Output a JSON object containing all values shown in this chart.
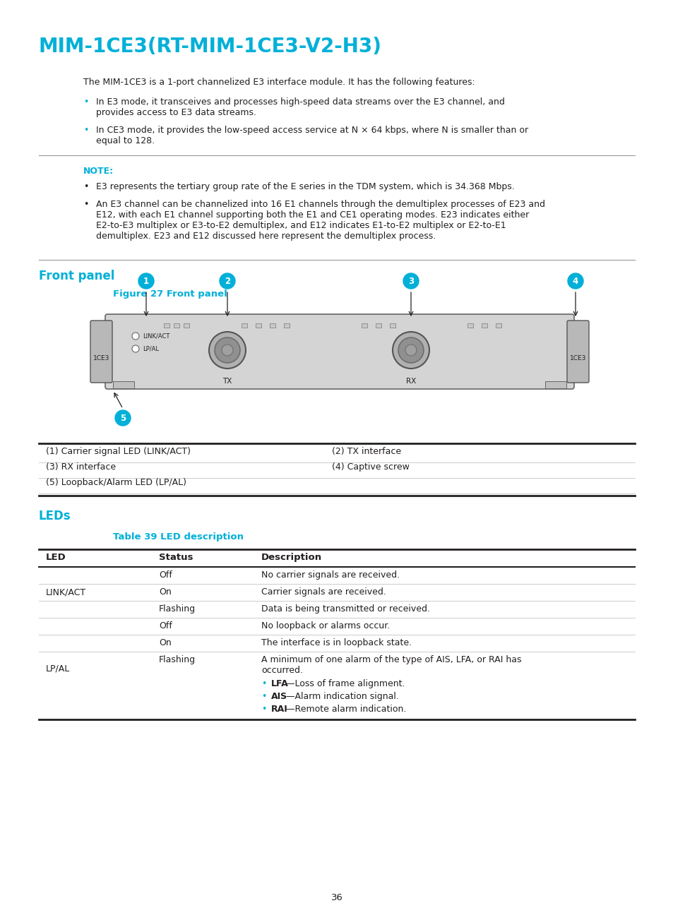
{
  "title": "MIM-1CE3(RT-MIM-1CE3-V2-H3)",
  "title_color": "#00b0d8",
  "bg_color": "#ffffff",
  "intro_text": "The MIM-1CE3 is a 1-port channelized E3 interface module. It has the following features:",
  "bullets": [
    "In E3 mode, it transceives and processes high-speed data streams over the E3 channel, and provides access to E3 data streams.",
    "In CE3 mode, it provides the low-speed access service at N × 64 kbps, where N is smaller than or equal to 128."
  ],
  "note_label": "NOTE:",
  "note_color": "#00b0d8",
  "note_bullets": [
    "E3 represents the tertiary group rate of the E series in the TDM system, which is 34.368 Mbps.",
    "An E3 channel can be channelized into 16 E1 channels through the demultiplex processes of E23 and E12, with each E1 channel supporting both the E1 and CE1 operating modes. E23 indicates either E2-to-E3 multiplex or E3-to-E2 demultiplex, and E12 indicates E1-to-E2 multiplex or E2-to-E1 demultiplex. E23 and E12 discussed here represent the demultiplex process."
  ],
  "section_front_panel": "Front panel",
  "section_front_panel_color": "#00b0d8",
  "figure_label": "Figure 27 Front panel",
  "figure_label_color": "#00b0d8",
  "table1_rows": [
    [
      "(1) Carrier signal LED (LINK/ACT)",
      "(2) TX interface"
    ],
    [
      "(3) RX interface",
      "(4) Captive screw"
    ],
    [
      "(5) Loopback/Alarm LED (LP/AL)",
      ""
    ]
  ],
  "section_leds": "LEDs",
  "section_leds_color": "#00b0d8",
  "table2_label": "Table 39 LED description",
  "table2_label_color": "#00b0d8",
  "table2_headers": [
    "LED",
    "Status",
    "Description"
  ],
  "table2_rows": [
    [
      "",
      "Off",
      "No carrier signals are received."
    ],
    [
      "LINK/ACT",
      "On",
      "Carrier signals are received."
    ],
    [
      "",
      "Flashing",
      "Data is being transmitted or received."
    ],
    [
      "",
      "Off",
      "No loopback or alarms occur."
    ],
    [
      "",
      "On",
      "The interface is in loopback state."
    ],
    [
      "LP/AL",
      "Flashing",
      ""
    ]
  ],
  "page_number": "36",
  "cyan": "#00b0d8",
  "black": "#231f20",
  "gray_hr": "#999999",
  "gray_line": "#cccccc"
}
